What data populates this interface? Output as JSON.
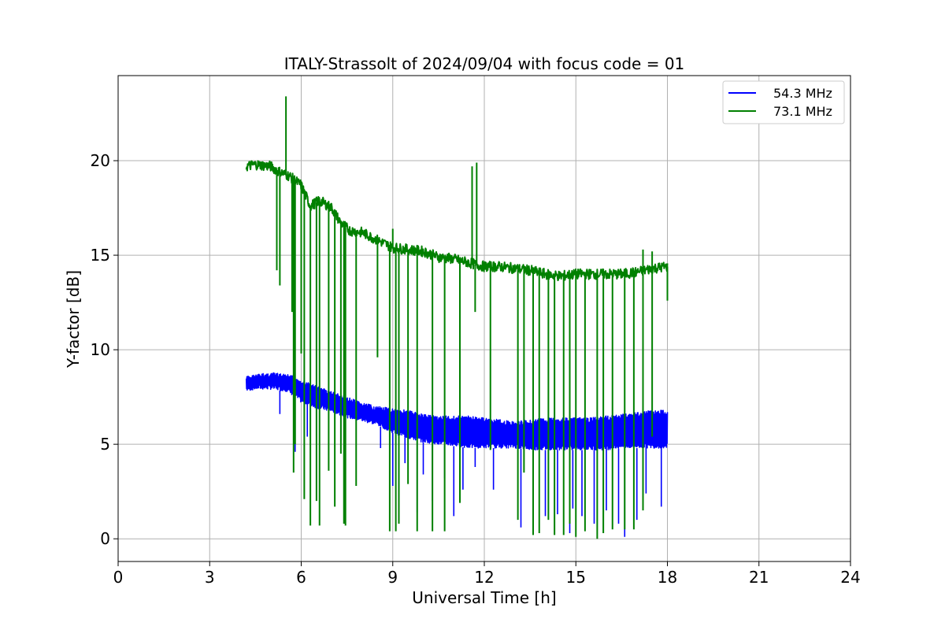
{
  "chart_data": {
    "type": "line",
    "title": "ITALY-Strassolt of 2024/09/04 with focus code = 01",
    "xlabel": "Universal Time [h]",
    "ylabel": "Y-factor [dB]",
    "xlim": [
      0,
      24
    ],
    "ylim": [
      -1.2,
      24.5
    ],
    "xticks": [
      0,
      3,
      6,
      9,
      12,
      15,
      18,
      21,
      24
    ],
    "yticks": [
      0,
      5,
      10,
      15,
      20
    ],
    "grid": true,
    "legend_position": "top-right",
    "series": [
      {
        "name": "54.3 MHz",
        "color": "#0000ff",
        "x": [
          4.2,
          4.5,
          5.0,
          5.5,
          5.8,
          6.0,
          6.5,
          7.0,
          7.5,
          8.0,
          8.5,
          9.0,
          9.5,
          10.0,
          10.5,
          11.0,
          11.5,
          12.0,
          12.5,
          13.0,
          13.5,
          14.0,
          14.5,
          15.0,
          15.5,
          16.0,
          16.5,
          17.0,
          17.5,
          18.0
        ],
        "upper": [
          8.6,
          8.7,
          8.8,
          8.7,
          8.6,
          8.4,
          8.1,
          7.8,
          7.5,
          7.2,
          7.0,
          6.9,
          6.8,
          6.6,
          6.5,
          6.5,
          6.5,
          6.4,
          6.3,
          6.2,
          6.3,
          6.4,
          6.4,
          6.4,
          6.4,
          6.5,
          6.6,
          6.7,
          6.8,
          6.8
        ],
        "lower": [
          7.8,
          7.9,
          7.9,
          7.8,
          7.5,
          7.2,
          6.9,
          6.7,
          6.4,
          6.2,
          6.0,
          5.6,
          5.3,
          5.1,
          5.0,
          4.9,
          4.8,
          4.8,
          4.8,
          4.8,
          4.7,
          4.7,
          4.7,
          4.7,
          4.7,
          4.7,
          4.8,
          4.8,
          4.8,
          4.8
        ],
        "dips": [
          [
            5.3,
            6.6
          ],
          [
            5.8,
            4.6
          ],
          [
            6.2,
            5.4
          ],
          [
            7.3,
            5.2
          ],
          [
            8.6,
            4.8
          ],
          [
            9.0,
            2.8
          ],
          [
            9.4,
            4.0
          ],
          [
            9.8,
            1.4
          ],
          [
            10.0,
            3.4
          ],
          [
            10.3,
            2.0
          ],
          [
            10.7,
            3.2
          ],
          [
            11.0,
            1.2
          ],
          [
            11.3,
            2.6
          ],
          [
            11.7,
            3.8
          ],
          [
            12.3,
            2.6
          ],
          [
            13.2,
            0.6
          ],
          [
            13.6,
            1.0
          ],
          [
            14.0,
            1.2
          ],
          [
            14.4,
            1.3
          ],
          [
            14.8,
            0.3
          ],
          [
            14.9,
            1.6
          ],
          [
            15.2,
            1.2
          ],
          [
            15.6,
            0.8
          ],
          [
            16.0,
            1.5
          ],
          [
            16.4,
            0.8
          ],
          [
            16.6,
            0.1
          ],
          [
            17.0,
            1.0
          ],
          [
            17.3,
            2.4
          ],
          [
            17.8,
            1.7
          ]
        ]
      },
      {
        "name": "73.1 MHz",
        "color": "#008000",
        "x": [
          4.2,
          4.5,
          5.0,
          5.3,
          5.6,
          6.0,
          6.3,
          6.6,
          7.0,
          7.3,
          7.6,
          8.0,
          8.5,
          9.0,
          9.5,
          10.0,
          10.5,
          11.0,
          11.5,
          12.0,
          12.5,
          13.0,
          13.5,
          14.0,
          14.5,
          15.0,
          15.5,
          16.0,
          16.5,
          17.0,
          17.5,
          18.0
        ],
        "y": [
          19.7,
          19.8,
          19.7,
          19.4,
          19.2,
          18.7,
          17.6,
          17.9,
          17.5,
          16.7,
          16.3,
          16.2,
          15.8,
          15.4,
          15.3,
          15.2,
          14.9,
          14.8,
          14.6,
          14.4,
          14.4,
          14.3,
          14.2,
          14.0,
          13.9,
          14.0,
          14.0,
          14.0,
          14.0,
          14.1,
          14.3,
          14.4
        ],
        "spikes": [
          [
            5.5,
            23.4
          ],
          [
            11.6,
            19.7
          ],
          [
            11.75,
            19.9
          ],
          [
            9.0,
            16.4
          ],
          [
            17.2,
            15.3
          ],
          [
            17.5,
            15.2
          ]
        ],
        "dips": [
          [
            5.2,
            14.2
          ],
          [
            5.3,
            13.4
          ],
          [
            5.7,
            12.0
          ],
          [
            5.75,
            3.5
          ],
          [
            5.8,
            5.0
          ],
          [
            6.0,
            9.8
          ],
          [
            6.1,
            2.1
          ],
          [
            6.3,
            0.7
          ],
          [
            6.5,
            2.0
          ],
          [
            6.6,
            0.7
          ],
          [
            6.9,
            3.6
          ],
          [
            7.1,
            1.7
          ],
          [
            7.3,
            4.5
          ],
          [
            7.4,
            0.8
          ],
          [
            7.45,
            0.7
          ],
          [
            7.8,
            2.8
          ],
          [
            8.5,
            9.6
          ],
          [
            8.9,
            0.4
          ],
          [
            9.1,
            0.4
          ],
          [
            9.2,
            0.8
          ],
          [
            9.5,
            2.9
          ],
          [
            9.8,
            0.4
          ],
          [
            10.3,
            0.4
          ],
          [
            10.7,
            0.4
          ],
          [
            11.2,
            1.9
          ],
          [
            11.7,
            12.0
          ],
          [
            12.2,
            4.7
          ],
          [
            13.1,
            1.0
          ],
          [
            13.3,
            3.5
          ],
          [
            13.6,
            0.2
          ],
          [
            13.8,
            0.3
          ],
          [
            14.1,
            1.0
          ],
          [
            14.3,
            0.2
          ],
          [
            14.6,
            0.2
          ],
          [
            14.8,
            0.8
          ],
          [
            15.0,
            0.1
          ],
          [
            15.3,
            0.4
          ],
          [
            15.7,
            0.0
          ],
          [
            15.9,
            0.3
          ],
          [
            16.2,
            0.5
          ],
          [
            16.6,
            0.5
          ],
          [
            16.9,
            0.5
          ],
          [
            17.2,
            1.5
          ],
          [
            17.5,
            5.4
          ],
          [
            18.0,
            12.6
          ]
        ]
      }
    ]
  }
}
